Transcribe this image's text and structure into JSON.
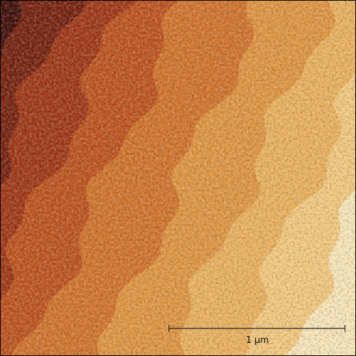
{
  "scale_bar": {
    "label": "1 µm"
  }
}
